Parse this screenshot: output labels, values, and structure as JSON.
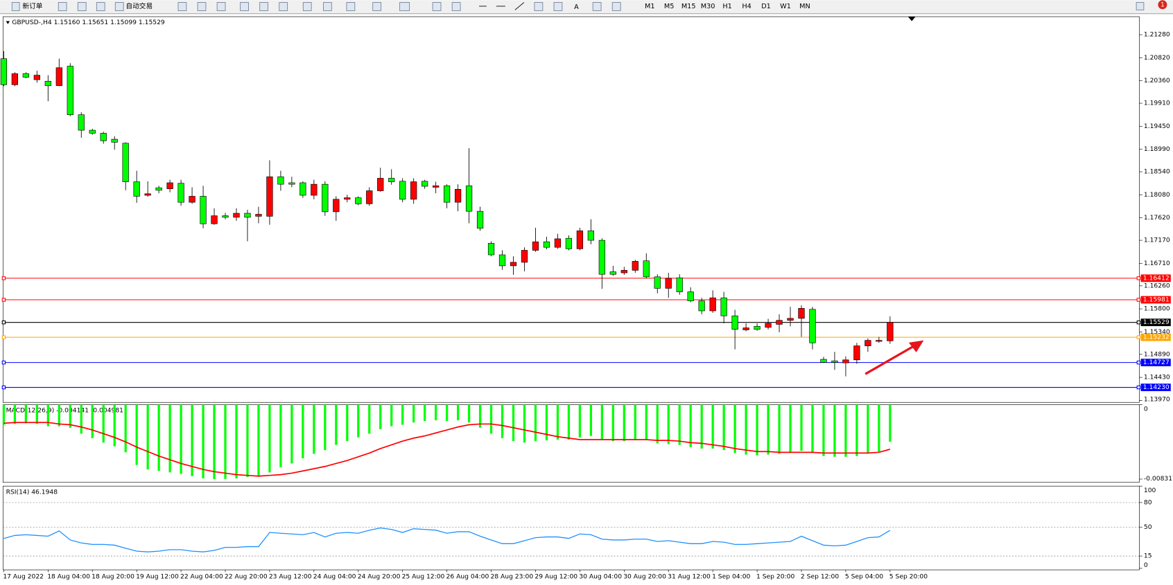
{
  "toolbar": {
    "new_order": "新订单",
    "auto_trading": "自动交易",
    "text_tool": "A",
    "timeframes": [
      "M1",
      "M5",
      "M15",
      "M30",
      "H1",
      "H4",
      "D1",
      "W1",
      "MN"
    ],
    "badge": 1
  },
  "chart_data": [
    {
      "type": "candlestick",
      "title": "GBPUSD-,H4  1.15160 1.15651 1.15099 1.15529",
      "up_color": "#ff0000",
      "down_color": "#00ff00",
      "categories": [
        "17 Aug 2022",
        null,
        null,
        null,
        "18 Aug 04:00",
        null,
        null,
        null,
        "18 Aug 20:00",
        null,
        null,
        null,
        "19 Aug 12:00",
        null,
        null,
        null,
        "22 Aug 04:00",
        null,
        null,
        null,
        "22 Aug 20:00",
        null,
        null,
        null,
        "23 Aug 12:00",
        null,
        null,
        null,
        "24 Aug 04:00",
        null,
        null,
        null,
        "24 Aug 20:00",
        null,
        null,
        null,
        "25 Aug 12:00",
        null,
        null,
        null,
        "26 Aug 04:00",
        null,
        null,
        null,
        "28 Aug 23:00",
        null,
        null,
        null,
        "29 Aug 12:00",
        null,
        null,
        null,
        "30 Aug 04:00",
        null,
        null,
        null,
        "30 Aug 20:00",
        null,
        null,
        null,
        "31 Aug 12:00",
        null,
        null,
        null,
        "1 Sep 04:00",
        null,
        null,
        null,
        "1 Sep 20:00",
        null,
        null,
        null,
        "2 Sep 12:00",
        null,
        null,
        null,
        "5 Sep 04:00",
        null,
        null,
        null,
        "5 Sep 20:00"
      ],
      "open": [
        1.208,
        1.2028,
        1.205,
        1.2038,
        1.2035,
        1.2026,
        1.2065,
        1.1968,
        1.1937,
        1.1931,
        1.1919,
        1.1911,
        1.1834,
        1.1807,
        1.1822,
        1.182,
        1.1831,
        1.1793,
        1.1805,
        1.175,
        1.1766,
        1.1763,
        1.1771,
        1.1765,
        1.1765,
        1.1844,
        1.1832,
        1.1832,
        1.1807,
        1.1829,
        1.1774,
        1.1799,
        1.1802,
        1.179,
        1.1816,
        1.1841,
        1.1835,
        1.1799,
        1.1835,
        1.1823,
        1.1826,
        1.1793,
        1.1826,
        1.1775,
        1.1711,
        1.1688,
        1.1666,
        1.1673,
        1.1697,
        1.1714,
        1.1703,
        1.1721,
        1.17,
        1.1736,
        1.1717,
        1.1654,
        1.1652,
        1.1657,
        1.1676,
        1.1644,
        1.1621,
        1.1642,
        1.1614,
        1.1596,
        1.1576,
        1.1602,
        1.1566,
        1.1538,
        1.1545,
        1.1543,
        1.1549,
        1.1557,
        1.1561,
        1.1579,
        1.1479,
        1.1476,
        1.1472,
        1.1478,
        1.1506,
        1.1515,
        1.1516
      ],
      "high": [
        1.2095,
        1.2053,
        1.2053,
        1.2056,
        1.2047,
        1.208,
        1.2071,
        1.1973,
        1.194,
        1.1934,
        1.1925,
        1.1913,
        1.1856,
        1.1835,
        1.1826,
        1.1838,
        1.1838,
        1.1823,
        1.1826,
        1.1781,
        1.1772,
        1.1781,
        1.1778,
        1.1784,
        1.1877,
        1.1856,
        1.1844,
        1.1835,
        1.1838,
        1.1835,
        1.1805,
        1.1808,
        1.1805,
        1.1823,
        1.1862,
        1.1859,
        1.1841,
        1.1841,
        1.1838,
        1.1834,
        1.1829,
        1.1829,
        1.1901,
        1.1784,
        1.1715,
        1.1697,
        1.1685,
        1.1703,
        1.1742,
        1.1724,
        1.173,
        1.1727,
        1.1742,
        1.1759,
        1.1721,
        1.1666,
        1.1664,
        1.1678,
        1.1691,
        1.1649,
        1.1652,
        1.1649,
        1.1623,
        1.1602,
        1.1617,
        1.1614,
        1.1578,
        1.1551,
        1.1551,
        1.156,
        1.1569,
        1.1584,
        1.1587,
        1.1584,
        1.1484,
        1.1494,
        1.1485,
        1.1512,
        1.1521,
        1.1524,
        1.1565
      ],
      "low": [
        1.2025,
        1.2025,
        1.2041,
        1.2032,
        1.1995,
        1.2025,
        1.1965,
        1.1922,
        1.1928,
        1.191,
        1.1898,
        1.1817,
        1.1792,
        1.1804,
        1.1811,
        1.1813,
        1.1786,
        1.179,
        1.1741,
        1.1748,
        1.1759,
        1.1756,
        1.1715,
        1.1751,
        1.1748,
        1.1816,
        1.1823,
        1.1802,
        1.1799,
        1.1766,
        1.1756,
        1.1793,
        1.1787,
        1.1786,
        1.1814,
        1.1828,
        1.1793,
        1.179,
        1.182,
        1.1811,
        1.1781,
        1.1775,
        1.1751,
        1.1736,
        1.1685,
        1.1658,
        1.1648,
        1.1655,
        1.1694,
        1.1699,
        1.17,
        1.1697,
        1.1697,
        1.1709,
        1.162,
        1.1646,
        1.1648,
        1.1652,
        1.1641,
        1.1611,
        1.1602,
        1.1608,
        1.1593,
        1.1569,
        1.1572,
        1.1551,
        1.1499,
        1.1535,
        1.1536,
        1.1539,
        1.1533,
        1.1545,
        1.1524,
        1.1499,
        1.1472,
        1.1458,
        1.1445,
        1.147,
        1.1494,
        1.1512,
        1.151
      ],
      "close": [
        1.2028,
        1.205,
        1.2043,
        1.2047,
        1.2026,
        1.2062,
        1.1968,
        1.1937,
        1.1931,
        1.1916,
        1.1913,
        1.1834,
        1.1805,
        1.181,
        1.1817,
        1.1832,
        1.1793,
        1.1805,
        1.175,
        1.1766,
        1.1763,
        1.1771,
        1.1763,
        1.1769,
        1.1844,
        1.1829,
        1.1829,
        1.1807,
        1.1829,
        1.1774,
        1.1799,
        1.1802,
        1.179,
        1.1816,
        1.1841,
        1.1834,
        1.1799,
        1.1834,
        1.1825,
        1.1826,
        1.1793,
        1.1819,
        1.1775,
        1.1741,
        1.1688,
        1.1666,
        1.1673,
        1.1697,
        1.1714,
        1.1703,
        1.172,
        1.17,
        1.1736,
        1.1717,
        1.1649,
        1.1649,
        1.1657,
        1.1675,
        1.1644,
        1.1621,
        1.1641,
        1.1614,
        1.1596,
        1.1576,
        1.1602,
        1.1566,
        1.1539,
        1.1542,
        1.1539,
        1.1551,
        1.1557,
        1.1561,
        1.1581,
        1.1512,
        1.1473,
        1.1473,
        1.1478,
        1.1506,
        1.1517,
        1.1517,
        1.1553
      ],
      "ylim": [
        1.1393,
        1.2164
      ],
      "yticks": [
        {
          "value": 1.2128,
          "label": "1.21280"
        },
        {
          "value": 1.2082,
          "label": "1.20820"
        },
        {
          "value": 1.2036,
          "label": "1.20360"
        },
        {
          "value": 1.1991,
          "label": "1.19910"
        },
        {
          "value": 1.1945,
          "label": "1.19450"
        },
        {
          "value": 1.1899,
          "label": "1.18990"
        },
        {
          "value": 1.1854,
          "label": "1.18540"
        },
        {
          "value": 1.1808,
          "label": "1.18080"
        },
        {
          "value": 1.1762,
          "label": "1.17620"
        },
        {
          "value": 1.1717,
          "label": "1.17170"
        },
        {
          "value": 1.1671,
          "label": "1.16710"
        },
        {
          "value": 1.1626,
          "label": "1.16260"
        },
        {
          "value": 1.158,
          "label": "1.15800"
        },
        {
          "value": 1.1534,
          "label": "1.15340"
        },
        {
          "value": 1.1489,
          "label": "1.14890"
        },
        {
          "value": 1.1443,
          "label": "1.14430"
        },
        {
          "value": 1.1397,
          "label": "1.13970"
        }
      ],
      "levels": [
        {
          "value": 1.16412,
          "label": "1.16412",
          "color": "#ff0000"
        },
        {
          "value": 1.15981,
          "label": "1.15981",
          "color": "#ff0000"
        },
        {
          "value": 1.15529,
          "label": "1.15529",
          "color": "#000000"
        },
        {
          "value": 1.15232,
          "label": "1.15232",
          "color": "#ffa500"
        },
        {
          "value": 1.14727,
          "label": "1.14727",
          "color": "#0000ff"
        },
        {
          "value": 1.1423,
          "label": "1.14230",
          "color": "#0000ff"
        }
      ]
    },
    {
      "type": "macd",
      "title": "MACD(12,26,9) -0.004141 -0.004981",
      "ylim": [
        -0.0086,
        0
      ],
      "yticks": [
        0,
        -0.008317
      ],
      "histogram": {
        "color": "#00ff00",
        "values": [
          -0.002246,
          -0.002163,
          -0.00208,
          -0.002163,
          -0.002413,
          -0.002413,
          -0.002579,
          -0.003245,
          -0.003744,
          -0.004243,
          -0.004659,
          -0.005325,
          -0.006739,
          -0.007238,
          -0.007405,
          -0.007571,
          -0.007738,
          -0.007987,
          -0.008237,
          -0.008317,
          -0.0083,
          -0.008237,
          -0.00807,
          -0.007987,
          -0.007571,
          -0.006989,
          -0.006573,
          -0.00599,
          -0.005491,
          -0.005075,
          -0.004493,
          -0.004077,
          -0.003661,
          -0.003245,
          -0.002746,
          -0.002413,
          -0.002246,
          -0.001997,
          -0.00183,
          -0.001747,
          -0.00183,
          -0.001747,
          -0.001997,
          -0.002579,
          -0.003245,
          -0.003744,
          -0.004077,
          -0.004243,
          -0.004077,
          -0.003994,
          -0.00391,
          -0.00391,
          -0.003661,
          -0.003494,
          -0.00391,
          -0.004077,
          -0.004077,
          -0.00391,
          -0.00391,
          -0.004326,
          -0.00441,
          -0.004493,
          -0.004742,
          -0.004909,
          -0.004909,
          -0.005075,
          -0.005408,
          -0.005574,
          -0.005658,
          -0.005574,
          -0.005491,
          -0.005325,
          -0.005158,
          -0.005408,
          -0.005741,
          -0.005824,
          -0.005824,
          -0.005741,
          -0.005408,
          -0.005242,
          -0.004141
        ]
      },
      "signal": {
        "color": "#ff0000",
        "values": [
          -0.00208,
          -0.001997,
          -0.001997,
          -0.001997,
          -0.001997,
          -0.002163,
          -0.002246,
          -0.002496,
          -0.002829,
          -0.003245,
          -0.003661,
          -0.00416,
          -0.004742,
          -0.005242,
          -0.005741,
          -0.006157,
          -0.006573,
          -0.006906,
          -0.007238,
          -0.007488,
          -0.007654,
          -0.007821,
          -0.007904,
          -0.007987,
          -0.007904,
          -0.007821,
          -0.007654,
          -0.007405,
          -0.007155,
          -0.006906,
          -0.006573,
          -0.00624,
          -0.005824,
          -0.005408,
          -0.004909,
          -0.004493,
          -0.004077,
          -0.003744,
          -0.003494,
          -0.003162,
          -0.002829,
          -0.002496,
          -0.002246,
          -0.002163,
          -0.002163,
          -0.00233,
          -0.002579,
          -0.002829,
          -0.003078,
          -0.003328,
          -0.003578,
          -0.003744,
          -0.00391,
          -0.00391,
          -0.00391,
          -0.00391,
          -0.00391,
          -0.00391,
          -0.00391,
          -0.003994,
          -0.003994,
          -0.004077,
          -0.004243,
          -0.004326,
          -0.004493,
          -0.004659,
          -0.004909,
          -0.005075,
          -0.005242,
          -0.005242,
          -0.005325,
          -0.005325,
          -0.005325,
          -0.005325,
          -0.005408,
          -0.005408,
          -0.005408,
          -0.005408,
          -0.005408,
          -0.005325,
          -0.004981
        ]
      }
    },
    {
      "type": "line",
      "title": "RSI(14) 46.1948",
      "ylim": [
        0,
        100
      ],
      "yticks": [
        100,
        80,
        50,
        15,
        0
      ],
      "series": [
        {
          "color": "#1e90ff",
          "values": [
            36.4,
            40.0,
            40.9,
            40.0,
            39.1,
            45.5,
            34.5,
            30.9,
            29.1,
            29.1,
            28.2,
            24.5,
            20.9,
            20.0,
            20.9,
            22.7,
            22.7,
            20.9,
            20.0,
            21.8,
            25.5,
            25.5,
            26.4,
            26.4,
            43.6,
            42.7,
            41.8,
            40.9,
            43.6,
            38.2,
            42.7,
            43.6,
            42.7,
            46.4,
            49.1,
            47.3,
            43.6,
            48.2,
            47.3,
            46.4,
            42.7,
            44.5,
            44.5,
            39.1,
            34.5,
            30.0,
            30.0,
            33.6,
            37.3,
            38.2,
            38.2,
            36.4,
            41.8,
            40.9,
            35.5,
            34.5,
            34.5,
            35.5,
            35.5,
            32.7,
            33.6,
            31.8,
            30.0,
            30.0,
            32.7,
            31.8,
            29.1,
            29.1,
            30.0,
            30.9,
            31.8,
            32.7,
            39.1,
            33.6,
            28.2,
            27.3,
            28.2,
            32.7,
            37.3,
            38.2,
            46.1948
          ]
        }
      ]
    }
  ]
}
